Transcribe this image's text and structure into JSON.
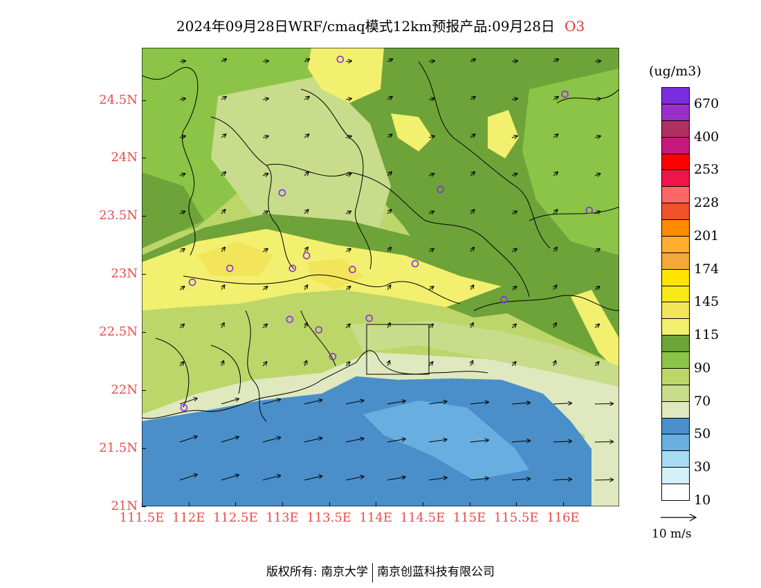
{
  "title": {
    "main": "2024年09月28日WRF/cmaq模式12km预报产品:09月28日",
    "species": "O3"
  },
  "map": {
    "lon_range": [
      111.5,
      116.6
    ],
    "lat_range": [
      21.0,
      24.95
    ],
    "y_ticks": [
      {
        "value": 24.5,
        "label": "24.5N"
      },
      {
        "value": 24.0,
        "label": "24N"
      },
      {
        "value": 23.5,
        "label": "23.5N"
      },
      {
        "value": 23.0,
        "label": "23N"
      },
      {
        "value": 22.5,
        "label": "22.5N"
      },
      {
        "value": 22.0,
        "label": "22N"
      },
      {
        "value": 21.5,
        "label": "21.5N"
      },
      {
        "value": 21.0,
        "label": "21N"
      }
    ],
    "x_ticks": [
      {
        "value": 111.5,
        "label": "111.5E"
      },
      {
        "value": 112.0,
        "label": "112E"
      },
      {
        "value": 112.5,
        "label": "112.5E"
      },
      {
        "value": 113.0,
        "label": "113E"
      },
      {
        "value": 113.5,
        "label": "113.5E"
      },
      {
        "value": 114.0,
        "label": "114E"
      },
      {
        "value": 114.5,
        "label": "114.5E"
      },
      {
        "value": 115.0,
        "label": "115E"
      },
      {
        "value": 115.5,
        "label": "115.5E"
      },
      {
        "value": 116.0,
        "label": "116E"
      }
    ],
    "stations": [
      {
        "lon": 113.62,
        "lat": 24.85
      },
      {
        "lon": 116.02,
        "lat": 24.55
      },
      {
        "lon": 113.0,
        "lat": 23.7
      },
      {
        "lon": 114.69,
        "lat": 23.73
      },
      {
        "lon": 116.28,
        "lat": 23.55
      },
      {
        "lon": 112.44,
        "lat": 23.05
      },
      {
        "lon": 113.11,
        "lat": 23.05
      },
      {
        "lon": 113.26,
        "lat": 23.16
      },
      {
        "lon": 113.75,
        "lat": 23.04
      },
      {
        "lon": 114.42,
        "lat": 23.09
      },
      {
        "lon": 112.04,
        "lat": 22.93
      },
      {
        "lon": 115.37,
        "lat": 22.78
      },
      {
        "lon": 113.08,
        "lat": 22.61
      },
      {
        "lon": 113.39,
        "lat": 22.52
      },
      {
        "lon": 113.93,
        "lat": 22.62
      },
      {
        "lon": 113.54,
        "lat": 22.29
      },
      {
        "lon": 111.95,
        "lat": 21.85
      }
    ],
    "station_color": "#8a2be2"
  },
  "colorbar": {
    "unit": "(ug/m3)",
    "colors": [
      "#7b2ee0",
      "#9a30c8",
      "#b03060",
      "#c8187e",
      "#ff0000",
      "#f0164a",
      "#ff6666",
      "#f0522a",
      "#ff8a00",
      "#ffae2e",
      "#f4a83c",
      "#ffe400",
      "#f8e818",
      "#f2e55a",
      "#f2f06e",
      "#6ea33a",
      "#8cc447",
      "#bcd66a",
      "#c9dc8b",
      "#dfe8bf",
      "#4a8fc9",
      "#68aee0",
      "#a6dbf2",
      "#d6f0fa",
      "#ffffff"
    ],
    "labels": [
      "670",
      "400",
      "253",
      "228",
      "201",
      "174",
      "145",
      "115",
      "90",
      "70",
      "50",
      "30",
      "10"
    ]
  },
  "wind_key": {
    "label": "10  m/s"
  },
  "copyright": {
    "part1": "版权所有: 南京大学",
    "part2": "南京创蓝科技有限公司"
  }
}
